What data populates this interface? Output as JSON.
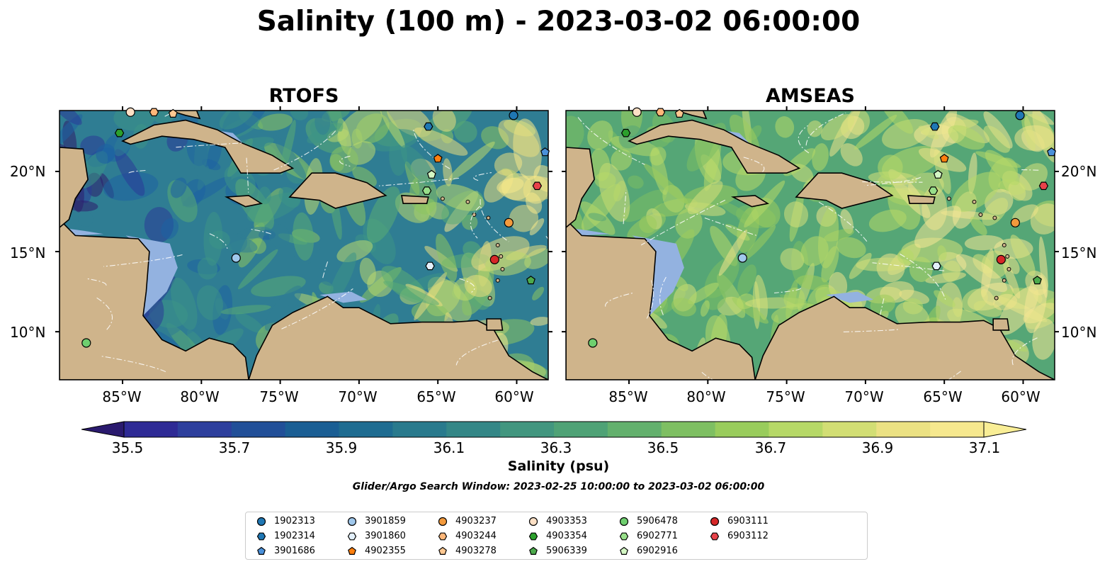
{
  "title": "Salinity (100 m) - 2023-03-02 06:00:00",
  "panels": [
    {
      "title": "RTOFS",
      "palette": [
        "#2d1d6b",
        "#2a3b98",
        "#1d63a2",
        "#2f7d93",
        "#3c9486",
        "#5aab74",
        "#8dc460",
        "#bcd96e",
        "#eadf7e",
        "#f7e98a"
      ]
    },
    {
      "title": "AMSEAS",
      "palette": [
        "#1e5d99",
        "#2a7691",
        "#3a8f86",
        "#55a676",
        "#7bbd62",
        "#9dcc5c",
        "#b7d868",
        "#d6e07a",
        "#eee38a",
        "#f6e795"
      ]
    }
  ],
  "axes": {
    "lon_ticks": [
      "85°W",
      "80°W",
      "75°W",
      "70°W",
      "65°W",
      "60°W"
    ],
    "lon_values": [
      -85,
      -80,
      -75,
      -70,
      -65,
      -60
    ],
    "lat_ticks": [
      "20°N",
      "15°N",
      "10°N"
    ],
    "lat_values": [
      20,
      15,
      10
    ],
    "extent": {
      "lon_min": -89,
      "lon_max": -58,
      "lat_min": 7,
      "lat_max": 23.8
    }
  },
  "colorbar": {
    "label": "Salinity (psu)",
    "tick_labels": [
      "35.5",
      "35.7",
      "35.9",
      "36.1",
      "36.3",
      "36.5",
      "36.7",
      "36.9",
      "37.1"
    ],
    "min": 35.4,
    "max": 37.2,
    "step": 0.1,
    "colors": [
      "#2a1a6e",
      "#2e2a95",
      "#2d3f9d",
      "#214f98",
      "#1a5e94",
      "#1e6c91",
      "#297a8d",
      "#348787",
      "#42967f",
      "#4fa276",
      "#63b06d",
      "#7ebf62",
      "#99cc5c",
      "#b6d867",
      "#d2de74",
      "#ebe183",
      "#f6e88e",
      "#f9ee96"
    ]
  },
  "search_window": "Glider/Argo Search Window: 2023-02-25 10:00:00 to 2023-03-02 06:00:00",
  "legend": [
    {
      "id": "1902313",
      "marker": "circle",
      "color": "#1f77b4",
      "lon": -60.2,
      "lat": 23.5
    },
    {
      "id": "1902314",
      "marker": "hexagon",
      "color": "#1f77b4",
      "lon": -65.6,
      "lat": 22.8
    },
    {
      "id": "3901686",
      "marker": "pentagon",
      "color": "#4a90d9",
      "lon": -58.2,
      "lat": 21.2
    },
    {
      "id": "3901859",
      "marker": "circle",
      "color": "#a0c8ec",
      "lon": -77.8,
      "lat": 14.6
    },
    {
      "id": "3901860",
      "marker": "hexagon",
      "color": "#e3f0fb",
      "lon": -65.5,
      "lat": 14.1
    },
    {
      "id": "4902355",
      "marker": "pentagon",
      "color": "#ff7f0e",
      "lon": -65.0,
      "lat": 20.8
    },
    {
      "id": "4903237",
      "marker": "circle",
      "color": "#f39a3c",
      "lon": -60.5,
      "lat": 16.8
    },
    {
      "id": "4903244",
      "marker": "hexagon",
      "color": "#ffb779",
      "lon": -83.0,
      "lat": 23.7
    },
    {
      "id": "4903278",
      "marker": "pentagon",
      "color": "#ffc891",
      "lon": -81.8,
      "lat": 23.6
    },
    {
      "id": "4903353",
      "marker": "circle",
      "color": "#fde0c5",
      "lon": -84.5,
      "lat": 23.7
    },
    {
      "id": "4903354",
      "marker": "hexagon",
      "color": "#2ca02c",
      "lon": -85.2,
      "lat": 22.4
    },
    {
      "id": "5906339",
      "marker": "pentagon",
      "color": "#4caa4c",
      "lon": -59.1,
      "lat": 13.2
    },
    {
      "id": "5906478",
      "marker": "circle",
      "color": "#6fcf6f",
      "lon": -87.3,
      "lat": 9.3
    },
    {
      "id": "6902771",
      "marker": "hexagon",
      "color": "#98df8a",
      "lon": -65.7,
      "lat": 18.8
    },
    {
      "id": "6902916",
      "marker": "pentagon",
      "color": "#d4f7c4",
      "lon": -65.4,
      "lat": 19.8
    },
    {
      "id": "6903111",
      "marker": "circle",
      "color": "#d62728",
      "lon": -61.4,
      "lat": 14.5
    },
    {
      "id": "6903112",
      "marker": "hexagon",
      "color": "#e8434a",
      "lon": -58.7,
      "lat": 19.1
    }
  ]
}
